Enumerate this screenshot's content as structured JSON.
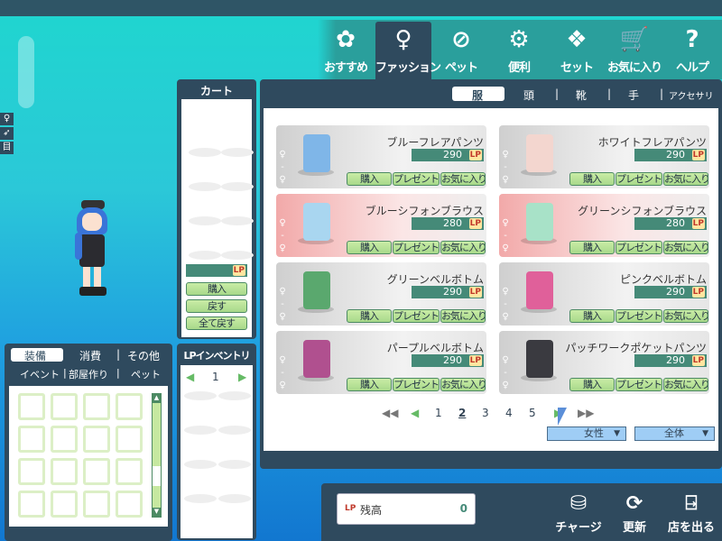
{
  "nav": {
    "items": [
      {
        "label": "おすすめ",
        "icon": "recommend-icon",
        "active": false
      },
      {
        "label": "ファッション",
        "icon": "fashion-icon",
        "active": true
      },
      {
        "label": "ペット",
        "icon": "pet-icon",
        "active": false
      },
      {
        "label": "便利",
        "icon": "gear-icon",
        "active": false
      },
      {
        "label": "セット",
        "icon": "set-icon",
        "active": false
      },
      {
        "label": "お気に入り",
        "icon": "cart-icon",
        "active": false
      },
      {
        "label": "ヘルプ",
        "icon": "help-icon",
        "active": false
      }
    ]
  },
  "side_buttons": [
    "fashion-small-icon",
    "run-icon",
    "目"
  ],
  "cart": {
    "title": "カート",
    "lp_label": "LP",
    "buttons": [
      "購入",
      "戻す",
      "全て戻す"
    ]
  },
  "shop": {
    "categories": [
      "服",
      "頭",
      "靴",
      "手",
      "アクセサリ"
    ],
    "active_category": "服",
    "buttons": {
      "buy": "購入",
      "present": "プレゼント",
      "favorite": "お気に入り"
    },
    "currency": "LP",
    "items": [
      {
        "name": "ブルーフレアパンツ",
        "price": "290",
        "bg": "gray",
        "color": "#7fb6e8"
      },
      {
        "name": "ホワイトフレアパンツ",
        "price": "290",
        "bg": "gray",
        "color": "#f3d6cf"
      },
      {
        "name": "ブルーシフォンブラウス",
        "price": "280",
        "bg": "pink",
        "color": "#a9d6f0"
      },
      {
        "name": "グリーンシフォンブラウス",
        "price": "280",
        "bg": "pink",
        "color": "#a8e2c8"
      },
      {
        "name": "グリーンベルボトム",
        "price": "290",
        "bg": "gray",
        "color": "#5aa86e"
      },
      {
        "name": "ピンクベルボトム",
        "price": "290",
        "bg": "gray",
        "color": "#e0609a"
      },
      {
        "name": "パープルベルボトム",
        "price": "290",
        "bg": "gray",
        "color": "#b0508f"
      },
      {
        "name": "パッチワークポケットパンツ",
        "price": "290",
        "bg": "gray",
        "color": "#3a3a40"
      }
    ],
    "pagination": {
      "pages": [
        "1",
        "2",
        "3",
        "4",
        "5"
      ],
      "current": "2"
    },
    "filters": {
      "gender": "女性",
      "scope": "全体"
    }
  },
  "inventory": {
    "tabs_row1": [
      "装備",
      "消費",
      "その他"
    ],
    "tabs_row2": [
      "イベント",
      "部屋作り",
      "ペット"
    ],
    "active_tab": "装備"
  },
  "lp_inventory": {
    "title": "LPインベントリ",
    "page": "1"
  },
  "balance": {
    "label": "残高",
    "value": "0"
  },
  "actions": [
    {
      "label": "チャージ",
      "icon": "coins-icon"
    },
    {
      "label": "更新",
      "icon": "refresh-icon"
    },
    {
      "label": "店を出る",
      "icon": "exit-door-icon"
    }
  ]
}
